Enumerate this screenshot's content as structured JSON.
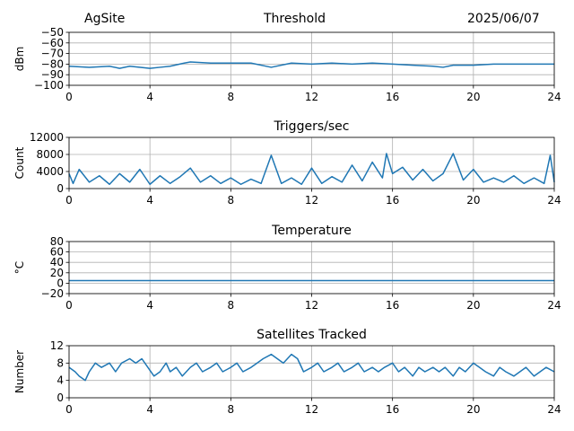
{
  "header": {
    "site": "AgSite",
    "title": "Threshold",
    "date": "2025/06/07"
  },
  "colors": {
    "line": "#1f77b4",
    "grid": "#b0b0b0",
    "axis": "#000000"
  },
  "chart_data": [
    {
      "type": "line",
      "title": "",
      "xlabel": "",
      "ylabel": "dBm",
      "xlim": [
        0,
        24
      ],
      "ylim": [
        -100,
        -50
      ],
      "xticks": [
        0,
        4,
        8,
        12,
        16,
        20,
        24
      ],
      "yticks": [
        -100,
        -90,
        -80,
        -70,
        -60,
        -50
      ],
      "ytick_labels": [
        "−100",
        "−90",
        "−80",
        "−70",
        "−60",
        "−50"
      ],
      "grid": true,
      "series": [
        {
          "x": [
            0,
            1,
            2,
            2.5,
            3,
            4,
            4.5,
            5,
            5.7,
            6,
            7,
            8,
            9,
            10,
            11,
            12,
            13,
            14,
            15,
            16,
            17,
            18,
            18.5,
            19,
            20,
            21,
            22,
            23,
            24
          ],
          "values": [
            -82,
            -83,
            -82,
            -84,
            -82,
            -84,
            -83,
            -82,
            -79,
            -78,
            -79,
            -79,
            -79,
            -83,
            -79,
            -80,
            -79,
            -80,
            -79,
            -80,
            -81,
            -82,
            -83,
            -81,
            -81,
            -80,
            -80,
            -80,
            -80
          ]
        }
      ]
    },
    {
      "type": "line",
      "title": "Triggers/sec",
      "xlabel": "",
      "ylabel": "Count",
      "xlim": [
        0,
        24
      ],
      "ylim": [
        0,
        12000
      ],
      "xticks": [
        0,
        4,
        8,
        12,
        16,
        20,
        24
      ],
      "yticks": [
        0,
        4000,
        8000,
        12000
      ],
      "grid": true,
      "series": [
        {
          "x": [
            0,
            0.2,
            0.5,
            1,
            1.5,
            2,
            2.5,
            3,
            3.5,
            4,
            4.5,
            5,
            5.5,
            6,
            6.5,
            7,
            7.5,
            8,
            8.5,
            9,
            9.5,
            10,
            10.5,
            11,
            11.5,
            12,
            12.5,
            13,
            13.5,
            14,
            14.5,
            15,
            15.5,
            15.7,
            16,
            16.5,
            17,
            17.5,
            18,
            18.5,
            19,
            19.5,
            20,
            20.5,
            21,
            21.5,
            22,
            22.5,
            23,
            23.5,
            23.8,
            24
          ],
          "values": [
            3500,
            1200,
            4500,
            1500,
            3000,
            1000,
            3500,
            1500,
            4500,
            1000,
            3000,
            1200,
            2800,
            4800,
            1500,
            3000,
            1200,
            2500,
            1000,
            2200,
            1200,
            7800,
            1200,
            2500,
            1000,
            4800,
            1200,
            2800,
            1500,
            5500,
            1800,
            6200,
            2500,
            8200,
            3500,
            5000,
            2000,
            4500,
            1800,
            3500,
            8200,
            2000,
            4500,
            1500,
            2500,
            1500,
            3000,
            1200,
            2500,
            1200,
            7800,
            1500
          ]
        }
      ]
    },
    {
      "type": "line",
      "title": "Temperature",
      "xlabel": "",
      "ylabel": "°C",
      "xlim": [
        0,
        24
      ],
      "ylim": [
        -20,
        80
      ],
      "xticks": [
        0,
        4,
        8,
        12,
        16,
        20,
        24
      ],
      "yticks": [
        -20,
        0,
        20,
        40,
        60,
        80
      ],
      "ytick_labels": [
        "−20",
        "0",
        "20",
        "40",
        "60",
        "80"
      ],
      "grid": true,
      "series": [
        {
          "x": [
            0,
            24
          ],
          "values": [
            5,
            5
          ]
        }
      ]
    },
    {
      "type": "line",
      "title": "Satellites Tracked",
      "xlabel": "",
      "ylabel": "Number",
      "xlim": [
        0,
        24
      ],
      "ylim": [
        0,
        12
      ],
      "xticks": [
        0,
        4,
        8,
        12,
        16,
        20,
        24
      ],
      "yticks": [
        0,
        4,
        8,
        12
      ],
      "grid": true,
      "series": [
        {
          "x": [
            0,
            0.3,
            0.5,
            0.8,
            1,
            1.3,
            1.6,
            2,
            2.3,
            2.6,
            3,
            3.3,
            3.6,
            3.9,
            4.2,
            4.5,
            4.8,
            5,
            5.3,
            5.6,
            6,
            6.3,
            6.6,
            7,
            7.3,
            7.6,
            8,
            8.3,
            8.6,
            9,
            9.3,
            9.6,
            10,
            10.3,
            10.6,
            11,
            11.3,
            11.6,
            12,
            12.3,
            12.6,
            13,
            13.3,
            13.6,
            14,
            14.3,
            14.6,
            15,
            15.3,
            15.6,
            16,
            16.3,
            16.6,
            17,
            17.3,
            17.6,
            18,
            18.3,
            18.6,
            19,
            19.3,
            19.6,
            20,
            20.3,
            20.6,
            21,
            21.3,
            21.6,
            22,
            22.3,
            22.6,
            23,
            23.3,
            23.6,
            24
          ],
          "values": [
            7,
            6,
            5,
            4,
            6,
            8,
            7,
            8,
            6,
            8,
            9,
            8,
            9,
            7,
            5,
            6,
            8,
            6,
            7,
            5,
            7,
            8,
            6,
            7,
            8,
            6,
            7,
            8,
            6,
            7,
            8,
            9,
            10,
            9,
            8,
            10,
            9,
            6,
            7,
            8,
            6,
            7,
            8,
            6,
            7,
            8,
            6,
            7,
            6,
            7,
            8,
            6,
            7,
            5,
            7,
            6,
            7,
            6,
            7,
            5,
            7,
            6,
            8,
            7,
            6,
            5,
            7,
            6,
            5,
            6,
            7,
            5,
            6,
            7,
            6
          ]
        }
      ]
    }
  ]
}
